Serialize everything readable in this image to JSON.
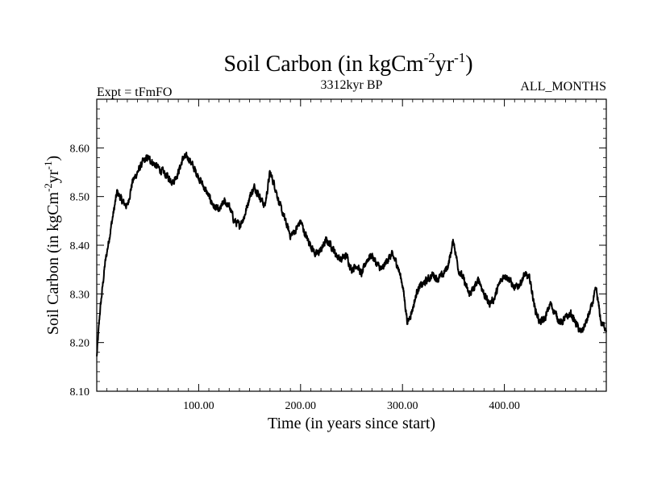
{
  "chart_data": {
    "type": "line",
    "title": "Soil Carbon (in kgCm",
    "title_sup1": "-2",
    "title_mid": "yr",
    "title_sup2": "-1",
    "title_end": ")",
    "subtitle_left": "Expt = tFmFO",
    "subtitle_center": "3312kyr BP",
    "subtitle_right": "ALL_MONTHS",
    "xlabel": "Time (in years since start)",
    "ylabel": "Soil Carbon (in kgCm",
    "ylabel_sup1": "-2",
    "ylabel_mid": "yr",
    "ylabel_sup2": "-1",
    "ylabel_end": ")",
    "xlim": [
      0,
      500
    ],
    "ylim": [
      8.1,
      8.7
    ],
    "xticks": [
      100,
      200,
      300,
      400
    ],
    "xtick_labels": [
      "100.00",
      "200.00",
      "300.00",
      "400.00"
    ],
    "yticks": [
      8.1,
      8.2,
      8.3,
      8.4,
      8.5,
      8.6
    ],
    "ytick_labels": [
      "8.10",
      "8.20",
      "8.30",
      "8.40",
      "8.50",
      "8.60"
    ],
    "grid": false,
    "series": [
      {
        "name": "Soil Carbon",
        "color": "#000000",
        "keypoints_x": [
          0,
          3,
          8,
          15,
          20,
          25,
          30,
          35,
          40,
          45,
          50,
          55,
          60,
          65,
          70,
          75,
          80,
          85,
          90,
          95,
          100,
          105,
          110,
          115,
          120,
          125,
          130,
          135,
          140,
          145,
          150,
          155,
          160,
          165,
          170,
          175,
          180,
          185,
          190,
          195,
          200,
          205,
          210,
          215,
          220,
          225,
          230,
          235,
          240,
          245,
          250,
          255,
          260,
          265,
          270,
          275,
          280,
          285,
          290,
          295,
          300,
          305,
          310,
          315,
          320,
          325,
          330,
          335,
          340,
          345,
          350,
          355,
          360,
          365,
          370,
          375,
          380,
          385,
          390,
          395,
          400,
          405,
          410,
          415,
          420,
          425,
          430,
          435,
          440,
          445,
          450,
          455,
          460,
          465,
          470,
          475,
          480,
          485,
          490,
          495,
          500
        ],
        "keypoints_y": [
          8.17,
          8.26,
          8.36,
          8.45,
          8.51,
          8.49,
          8.48,
          8.53,
          8.55,
          8.57,
          8.58,
          8.57,
          8.56,
          8.55,
          8.54,
          8.53,
          8.55,
          8.58,
          8.58,
          8.56,
          8.54,
          8.52,
          8.5,
          8.48,
          8.47,
          8.49,
          8.48,
          8.45,
          8.44,
          8.46,
          8.5,
          8.52,
          8.5,
          8.48,
          8.55,
          8.52,
          8.48,
          8.45,
          8.42,
          8.43,
          8.45,
          8.42,
          8.4,
          8.38,
          8.39,
          8.41,
          8.4,
          8.38,
          8.37,
          8.38,
          8.35,
          8.36,
          8.34,
          8.37,
          8.38,
          8.36,
          8.35,
          8.37,
          8.38,
          8.36,
          8.32,
          8.24,
          8.27,
          8.31,
          8.32,
          8.33,
          8.34,
          8.33,
          8.34,
          8.36,
          8.41,
          8.35,
          8.33,
          8.3,
          8.31,
          8.33,
          8.3,
          8.28,
          8.29,
          8.32,
          8.34,
          8.33,
          8.31,
          8.32,
          8.34,
          8.33,
          8.27,
          8.24,
          8.25,
          8.28,
          8.26,
          8.24,
          8.25,
          8.26,
          8.24,
          8.22,
          8.24,
          8.27,
          8.31,
          8.24,
          8.23
        ],
        "noise_amplitude": 0.012
      }
    ]
  }
}
